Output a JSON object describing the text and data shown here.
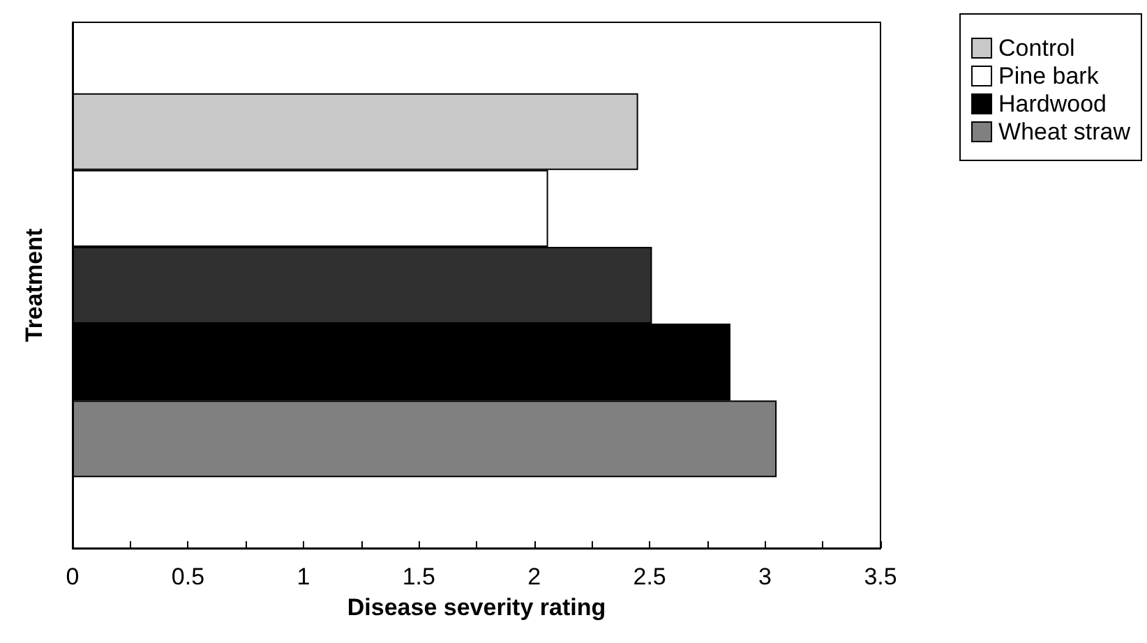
{
  "chart_data": {
    "type": "bar",
    "orientation": "horizontal",
    "xlabel": "Disease severity rating",
    "ylabel": "Treatment",
    "categories": [
      null
    ],
    "series": [
      {
        "name": "Control",
        "color": "#c8c8c8",
        "values": [
          2.45
        ]
      },
      {
        "name": "Pine bark",
        "color": "#ffffff",
        "values": [
          2.06
        ]
      },
      {
        "color": "#303030",
        "values": [
          2.51
        ]
      },
      {
        "name": "Hardwood",
        "color": "#000000",
        "values": [
          2.85
        ]
      },
      {
        "name": "Wheat straw",
        "color": "#808080",
        "values": [
          3.05
        ]
      }
    ],
    "xlim": [
      0,
      3.5
    ],
    "xticks": [
      0,
      {
        "value": 0.25,
        "label": null
      },
      0.5,
      {
        "value": 0.75,
        "label": null
      },
      1,
      {
        "value": 1.25,
        "label": null
      },
      1.5,
      {
        "value": 1.75,
        "label": null
      },
      2,
      {
        "value": 2.25,
        "label": null
      },
      2.5,
      {
        "value": 2.75,
        "label": null
      },
      3,
      {
        "value": 3.25,
        "label": null
      },
      3.5
    ],
    "grid": false,
    "legend": "top right"
  }
}
